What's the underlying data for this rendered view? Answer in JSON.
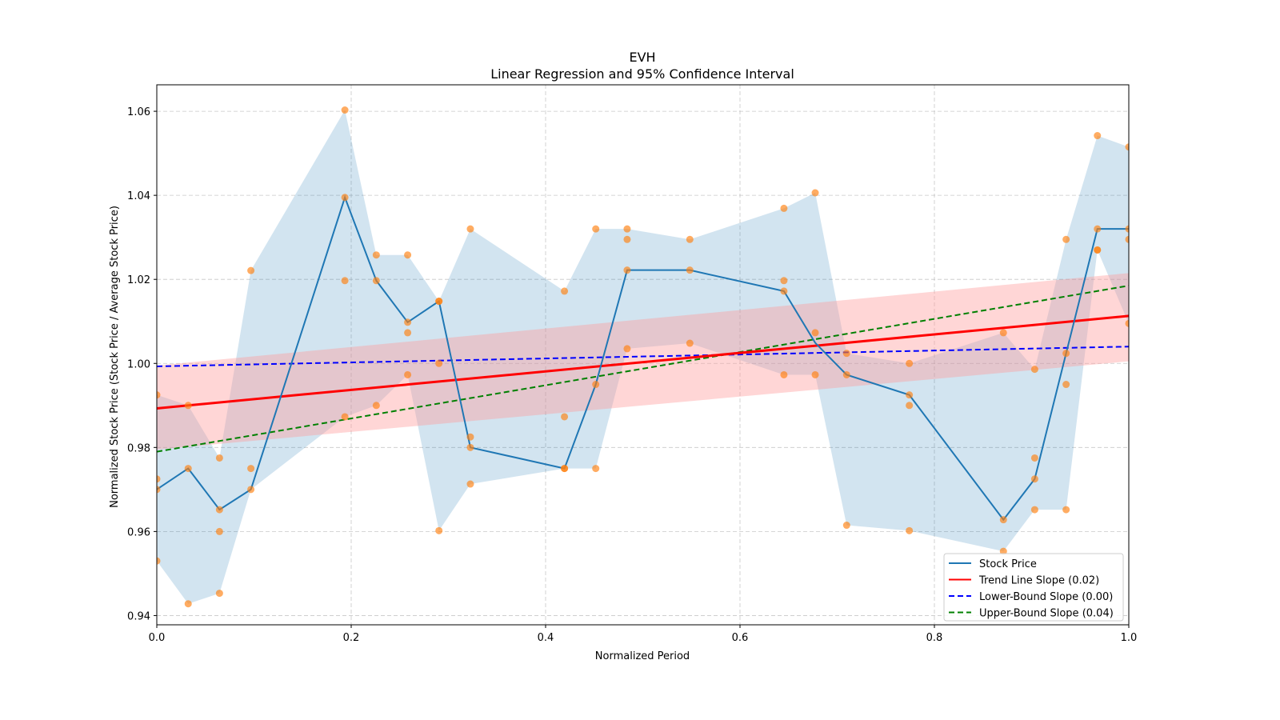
{
  "chart_data": {
    "type": "line",
    "title": "EVH",
    "subtitle": "Linear Regression and 95% Confidence Interval",
    "xlabel": "Normalized Period",
    "ylabel": "Normalized Stock Price (Stock Price / Average Stock Price)",
    "xlim": [
      0.0,
      1.0
    ],
    "ylim": [
      0.9378,
      1.0663
    ],
    "xticks": [
      0.0,
      0.2,
      0.4,
      0.6,
      0.8,
      1.0
    ],
    "xtick_labels": [
      "0.0",
      "0.2",
      "0.4",
      "0.6",
      "0.8",
      "1.0"
    ],
    "yticks": [
      0.94,
      0.96,
      0.98,
      1.0,
      1.02,
      1.04,
      1.06
    ],
    "ytick_labels": [
      "0.94",
      "0.96",
      "0.98",
      "1.00",
      "1.02",
      "1.04",
      "1.06"
    ],
    "grid": true,
    "legend_position": "lower-right",
    "colors": {
      "stock": "#1f77b4",
      "stock_band": "#1f77b4",
      "scatter": "#ff7f0e",
      "trend": "#ff0000",
      "trend_band": "#ff9999",
      "lower": "#0000ff",
      "upper": "#008000",
      "grid": "#b0b0b0"
    },
    "legend": [
      {
        "label": "Stock Price",
        "key": "stock",
        "style": "solid"
      },
      {
        "label": "Trend Line Slope (0.02)",
        "key": "trend",
        "style": "solid"
      },
      {
        "label": "Lower-Bound Slope (0.00)",
        "key": "lower",
        "style": "dashed"
      },
      {
        "label": "Upper-Bound Slope (0.04)",
        "key": "upper",
        "style": "dashed"
      }
    ],
    "stock_series": {
      "name": "Stock Price",
      "x": [
        0.0,
        0.0323,
        0.0645,
        0.0968,
        0.1935,
        0.2258,
        0.2581,
        0.2903,
        0.3226,
        0.4194,
        0.4516,
        0.4839,
        0.5484,
        0.6452,
        0.6774,
        0.7097,
        0.7742,
        0.871,
        0.9032,
        0.9355,
        0.9677,
        1.0
      ],
      "y": [
        0.97,
        0.975,
        0.9652,
        0.97,
        1.0395,
        1.0197,
        1.0098,
        1.0148,
        0.98,
        0.975,
        0.995,
        1.0222,
        1.0222,
        1.0172,
        1.0049,
        0.9973,
        0.9925,
        0.9628,
        0.9725,
        1.0024,
        1.032,
        1.032
      ],
      "band_low": [
        0.953,
        0.9428,
        0.9453,
        0.97,
        0.9873,
        0.99,
        0.9973,
        0.9602,
        0.9713,
        0.975,
        0.975,
        1.0035,
        1.0048,
        0.9973,
        0.9973,
        0.9615,
        0.9602,
        0.9553,
        0.9652,
        0.9652,
        1.027,
        1.0095
      ],
      "band_high": [
        0.9925,
        0.99,
        0.9775,
        1.0221,
        1.0603,
        1.0258,
        1.0258,
        1.0148,
        1.032,
        1.0172,
        1.032,
        1.032,
        1.0295,
        1.0369,
        1.0406,
        1.0024,
        1.0,
        1.0073,
        0.9986,
        1.0295,
        1.0542,
        1.0515
      ]
    },
    "scatter_points": [
      {
        "x": 0.0,
        "y": [
          0.9925,
          0.9725,
          0.97,
          0.953
        ]
      },
      {
        "x": 0.0323,
        "y": [
          0.99,
          0.975,
          0.9428
        ]
      },
      {
        "x": 0.0645,
        "y": [
          0.9775,
          0.9652,
          0.96,
          0.9453
        ]
      },
      {
        "x": 0.0968,
        "y": [
          1.0221,
          0.975,
          0.97
        ]
      },
      {
        "x": 0.1935,
        "y": [
          1.0603,
          1.0395,
          1.0197,
          0.9873
        ]
      },
      {
        "x": 0.2258,
        "y": [
          1.0258,
          1.0197,
          0.99
        ]
      },
      {
        "x": 0.2581,
        "y": [
          1.0258,
          1.0098,
          1.0073,
          0.9973
        ]
      },
      {
        "x": 0.2903,
        "y": [
          1.0148,
          1.0148,
          1.0,
          0.9602
        ]
      },
      {
        "x": 0.3226,
        "y": [
          1.032,
          0.9825,
          0.98,
          0.9713
        ]
      },
      {
        "x": 0.4194,
        "y": [
          1.0172,
          0.9873,
          0.975,
          0.975
        ]
      },
      {
        "x": 0.4516,
        "y": [
          1.032,
          0.995,
          0.975
        ]
      },
      {
        "x": 0.4839,
        "y": [
          1.032,
          1.0295,
          1.0222,
          1.0035
        ]
      },
      {
        "x": 0.5484,
        "y": [
          1.0295,
          1.0222,
          1.0048
        ]
      },
      {
        "x": 0.6452,
        "y": [
          1.0369,
          1.0197,
          1.0172,
          0.9973
        ]
      },
      {
        "x": 0.6774,
        "y": [
          1.0406,
          1.0073,
          0.9973
        ]
      },
      {
        "x": 0.7097,
        "y": [
          1.0024,
          0.9973,
          0.9615
        ]
      },
      {
        "x": 0.7742,
        "y": [
          1.0,
          0.9925,
          0.99,
          0.9602
        ]
      },
      {
        "x": 0.871,
        "y": [
          1.0073,
          0.9628,
          0.9553
        ]
      },
      {
        "x": 0.9032,
        "y": [
          0.9986,
          0.9775,
          0.9725,
          0.9652
        ]
      },
      {
        "x": 0.9355,
        "y": [
          1.0295,
          1.0024,
          0.995,
          0.9652
        ]
      },
      {
        "x": 0.9677,
        "y": [
          1.0542,
          1.032,
          1.027,
          1.027
        ]
      },
      {
        "x": 1.0,
        "y": [
          1.0515,
          1.032,
          1.0295,
          1.0095
        ]
      }
    ],
    "trend_line": {
      "name": "Trend Line Slope (0.02)",
      "x": [
        0.0,
        1.0
      ],
      "y": [
        0.9893,
        1.0113
      ],
      "band_low": [
        0.9795,
        1.0005
      ],
      "band_high": [
        0.9995,
        1.0215
      ]
    },
    "lower_bound_line": {
      "name": "Lower-Bound Slope (0.00)",
      "x": [
        0.0,
        1.0
      ],
      "y": [
        0.9993,
        1.004
      ]
    },
    "upper_bound_line": {
      "name": "Upper-Bound Slope (0.04)",
      "x": [
        0.0,
        1.0
      ],
      "y": [
        0.979,
        1.0185
      ]
    }
  }
}
